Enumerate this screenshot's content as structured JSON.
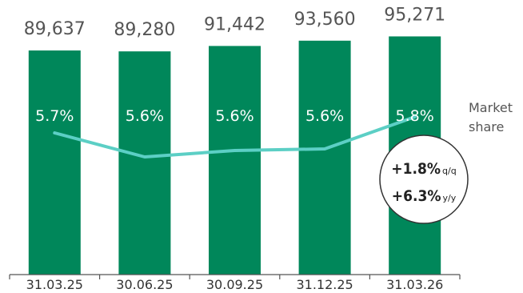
{
  "chart_data": {
    "type": "bar",
    "categories": [
      "31.03.25",
      "30.06.25",
      "30.09.25",
      "31.12.25",
      "31.03.26"
    ],
    "values": [
      89637,
      89280,
      91442,
      93560,
      95271
    ],
    "value_labels": [
      "89,637",
      "89,280",
      "91,442",
      "93,560",
      "95,271"
    ],
    "line_series": {
      "name": "Market share",
      "values": [
        5.7,
        5.6,
        5.6,
        5.6,
        5.8
      ],
      "labels": [
        "5.7%",
        "5.6%",
        "5.6%",
        "5.6%",
        "5.8%"
      ]
    },
    "line_label": [
      "Market",
      "share"
    ],
    "growth": {
      "qoq_value": "+1.8%",
      "qoq_unit": "q/q",
      "yoy_value": "+6.3%",
      "yoy_unit": "y/y"
    },
    "colors": {
      "bar": "#00875a",
      "line": "#5ccfc5",
      "axis": "#555555"
    },
    "ylim": [
      0,
      100000
    ],
    "grid": false
  }
}
